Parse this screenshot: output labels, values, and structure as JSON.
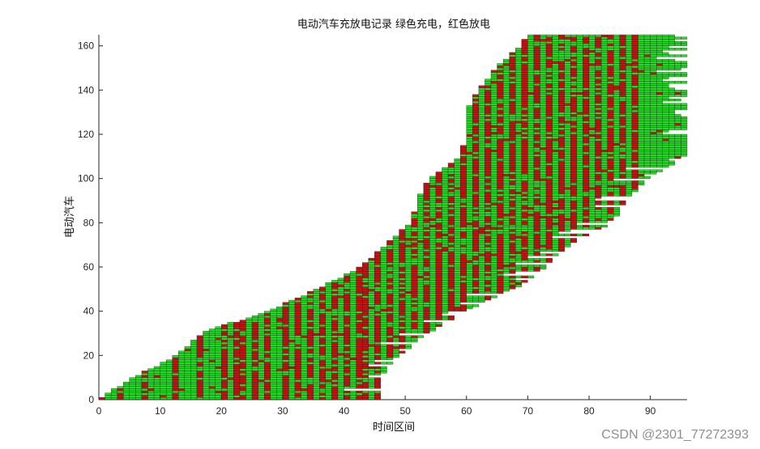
{
  "chart_data": {
    "type": "heatmap",
    "title": "电动汽车充放电记录 绿色充电，红色放电",
    "xlabel": "时间区间",
    "ylabel": "电动汽车",
    "xlim": [
      0,
      96
    ],
    "ylim": [
      0,
      165
    ],
    "x_ticks": [
      0,
      10,
      20,
      30,
      40,
      50,
      60,
      70,
      80,
      90
    ],
    "y_ticks": [
      0,
      20,
      40,
      60,
      80,
      100,
      120,
      140,
      160
    ],
    "grid": false,
    "legend": "none",
    "colors": {
      "charge": "#22dd22",
      "discharge": "#cc1111",
      "edge": "#1f1f1f"
    },
    "rows_estimated": [
      {
        "ev": 0,
        "start": 0,
        "end": 46
      },
      {
        "ev": 10,
        "start": 6,
        "end": 46
      },
      {
        "ev": 20,
        "start": 13,
        "end": 49
      },
      {
        "ev": 30,
        "start": 17,
        "end": 54
      },
      {
        "ev": 40,
        "start": 28,
        "end": 60
      },
      {
        "ev": 50,
        "start": 36,
        "end": 68
      },
      {
        "ev": 60,
        "start": 43,
        "end": 73
      },
      {
        "ev": 70,
        "start": 47,
        "end": 77
      },
      {
        "ev": 80,
        "start": 51,
        "end": 84
      },
      {
        "ev": 90,
        "start": 52,
        "end": 86
      },
      {
        "ev": 100,
        "start": 54,
        "end": 90
      },
      {
        "ev": 110,
        "start": 59,
        "end": 96
      },
      {
        "ev": 120,
        "start": 60,
        "end": 96
      },
      {
        "ev": 130,
        "start": 60,
        "end": 96
      },
      {
        "ev": 140,
        "start": 62,
        "end": 96
      },
      {
        "ev": 150,
        "start": 65,
        "end": 96
      },
      {
        "ev": 160,
        "start": 69,
        "end": 96
      },
      {
        "ev": 165,
        "start": 70,
        "end": 96
      }
    ],
    "discharge_columns_estimated": [
      3,
      7,
      12,
      16,
      20,
      22,
      23,
      25,
      27,
      30,
      32,
      34,
      36,
      38,
      40,
      42,
      43,
      45,
      47,
      49,
      51,
      53,
      55,
      57,
      59,
      61,
      63,
      65,
      67,
      69,
      71,
      73,
      75,
      77,
      79,
      81,
      83,
      85,
      87
    ]
  },
  "watermark": "CSDN @2301_77272393"
}
